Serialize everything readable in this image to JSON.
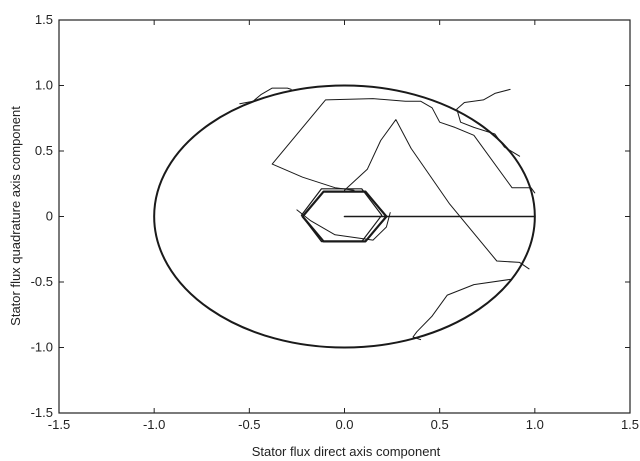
{
  "chart_data": {
    "type": "line",
    "title": "",
    "xlabel": "Stator flux direct axis component",
    "ylabel": "Stator flux quadrature axis component",
    "xlim": [
      -1.5,
      1.5
    ],
    "ylim": [
      -1.5,
      1.5
    ],
    "xticks": [
      -1.5,
      -1.0,
      -0.5,
      0,
      0.5,
      1.0,
      1.5
    ],
    "yticks": [
      -1.5,
      -1.0,
      -0.5,
      0,
      0.5,
      1.0,
      1.5
    ],
    "xtick_labels": [
      "-1.5",
      "-1.0",
      "-0.5",
      "0.0",
      "0.5",
      "1.0",
      "1.5"
    ],
    "ytick_labels": [
      "-1.5",
      "-1.0",
      "-0.5",
      "0",
      "0.5",
      "1.0",
      "1.5"
    ],
    "grid": false,
    "series": [
      {
        "id": "circle",
        "kind": "circle",
        "center": [
          0,
          0
        ],
        "radius": 1.0,
        "color": "#1a1a1a"
      },
      {
        "id": "radial-start",
        "x": [
          0.0,
          1.0
        ],
        "y": [
          0.0,
          0.0
        ],
        "color": "#1a1a1a"
      },
      {
        "id": "hexagon",
        "x": [
          0.22,
          0.11,
          -0.11,
          -0.22,
          -0.11,
          0.11,
          0.22
        ],
        "y": [
          0.0,
          0.19,
          0.19,
          0.0,
          -0.19,
          -0.19,
          0.0
        ],
        "color": "#1a1a1a"
      },
      {
        "id": "transient-1",
        "x": [
          1.0,
          0.98,
          0.88,
          0.68,
          0.58,
          0.5,
          0.46,
          0.4,
          0.32,
          0.15,
          -0.1,
          -0.38,
          -0.22,
          -0.05,
          0.05
        ],
        "y": [
          0.18,
          0.22,
          0.22,
          0.62,
          0.68,
          0.72,
          0.83,
          0.88,
          0.88,
          0.9,
          0.89,
          0.4,
          0.3,
          0.22,
          0.2
        ],
        "color": "#1a1a1a"
      },
      {
        "id": "transient-2",
        "x": [
          0.92,
          0.84,
          0.79,
          0.68,
          0.61,
          0.59,
          0.63,
          0.73,
          0.79,
          0.87
        ],
        "y": [
          0.46,
          0.53,
          0.63,
          0.68,
          0.72,
          0.82,
          0.87,
          0.89,
          0.94,
          0.97
        ],
        "color": "#1a1a1a"
      },
      {
        "id": "transient-3",
        "x": [
          -0.55,
          -0.48,
          -0.44,
          -0.38,
          -0.3,
          -0.28
        ],
        "y": [
          0.86,
          0.88,
          0.93,
          0.98,
          0.98,
          0.97
        ],
        "color": "#1a1a1a"
      },
      {
        "id": "transient-4",
        "x": [
          0.0,
          0.12,
          0.19,
          0.27,
          0.35,
          0.55,
          0.8,
          0.92,
          0.97
        ],
        "y": [
          0.2,
          0.36,
          0.58,
          0.74,
          0.52,
          0.1,
          -0.34,
          -0.35,
          -0.4
        ],
        "color": "#1a1a1a"
      },
      {
        "id": "transient-5",
        "x": [
          0.87,
          0.68,
          0.54,
          0.46,
          0.38,
          0.36,
          0.4
        ],
        "y": [
          -0.48,
          -0.52,
          -0.6,
          -0.76,
          -0.88,
          -0.92,
          -0.94
        ],
        "color": "#1a1a1a"
      },
      {
        "id": "transient-6",
        "x": [
          -0.25,
          -0.18,
          -0.05,
          0.15,
          0.22,
          0.24
        ],
        "y": [
          0.05,
          -0.03,
          -0.14,
          -0.18,
          -0.08,
          0.03
        ],
        "color": "#1a1a1a"
      }
    ]
  }
}
